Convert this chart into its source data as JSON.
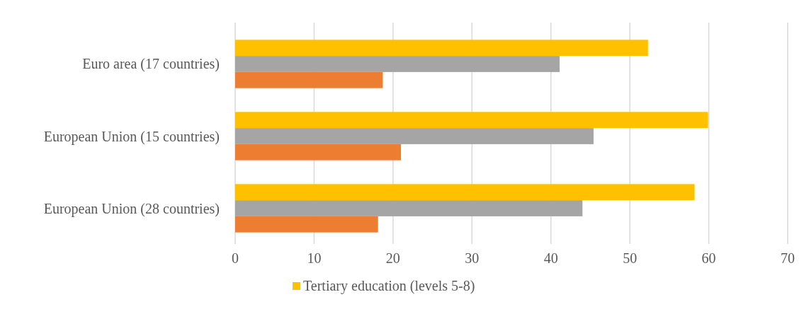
{
  "chart_data": {
    "type": "bar",
    "orientation": "horizontal",
    "categories": [
      "Euro area (17 countries)",
      "European Union (15 countries)",
      "European Union (28 countries)"
    ],
    "series": [
      {
        "color": "#ed7d31",
        "values": [
          18.7,
          21.0,
          18.1
        ]
      },
      {
        "color": "#a5a5a5",
        "values": [
          41.1,
          45.4,
          44.0
        ]
      },
      {
        "name": "Tertiary education (levels 5-8)",
        "color": "#ffc000",
        "values": [
          52.3,
          59.9,
          58.2
        ]
      }
    ],
    "xlim": [
      0,
      70
    ],
    "xticks": [
      0,
      10,
      20,
      30,
      40,
      50,
      60,
      70
    ],
    "grid": "x",
    "legend": "bottom"
  }
}
